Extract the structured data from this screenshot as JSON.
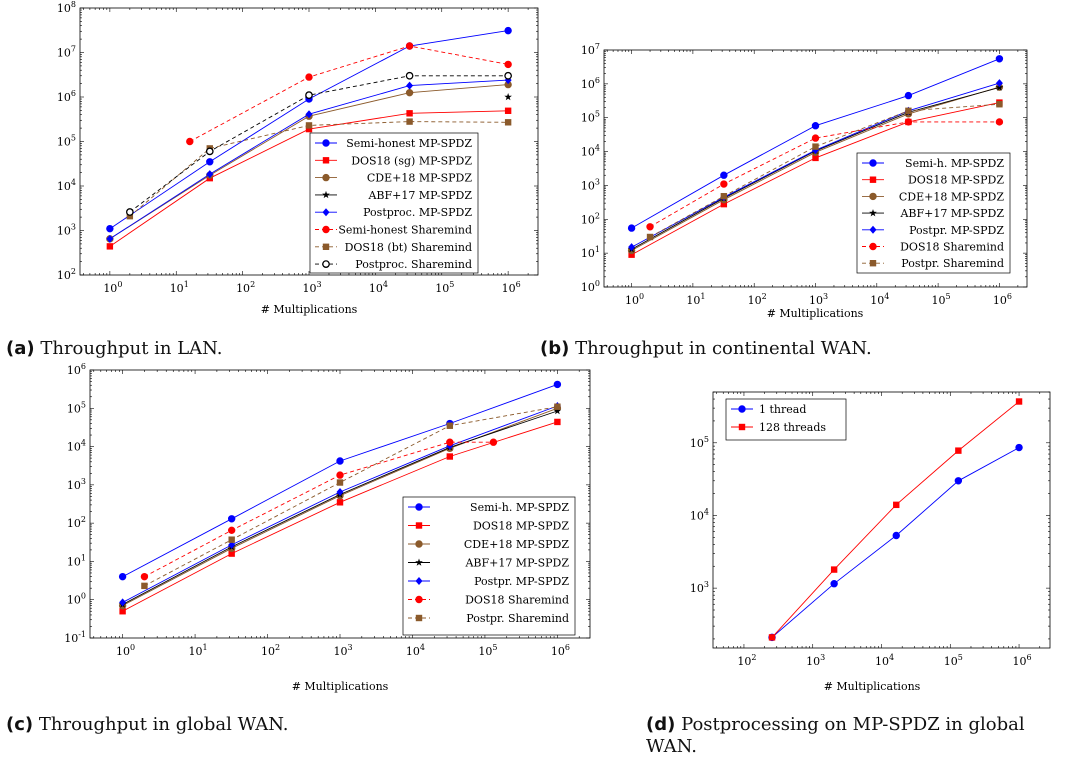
{
  "captions": [
    {
      "tag": "(a)",
      "text": "Throughput in LAN."
    },
    {
      "tag": "(b)",
      "text": "Throughput in continental WAN."
    },
    {
      "tag": "(c)",
      "text": "Throughput in global WAN."
    },
    {
      "tag": "(d)",
      "text": "Postprocessing on MP-SPDZ in global WAN."
    }
  ],
  "chart_data": [
    {
      "type": "line",
      "x_scale": "log",
      "y_scale": "log",
      "xlabel": "# Multiplications",
      "xlim": [
        1,
        1000000
      ],
      "ylim": [
        100,
        100000000
      ],
      "legend_position": "bottom-right",
      "series": [
        {
          "name": "Semi-honest MP-SPDZ",
          "color": "#0000ff",
          "marker": "circle",
          "dashed": false,
          "points": [
            [
              1,
              1100
            ],
            [
              32,
              35000
            ],
            [
              1000,
              900000
            ],
            [
              32768,
              14000000
            ],
            [
              1000000,
              31000000
            ]
          ]
        },
        {
          "name": "DOS18 (sg) MP-SPDZ",
          "color": "#ff0000",
          "marker": "square",
          "dashed": false,
          "points": [
            [
              1,
              440
            ],
            [
              32,
              15000
            ],
            [
              1000,
              190000
            ],
            [
              32768,
              430000
            ],
            [
              1000000,
              490000
            ]
          ]
        },
        {
          "name": "CDE+18 MP-SPDZ",
          "color": "#8b5a2b",
          "marker": "circle",
          "dashed": false,
          "points": [
            [
              1,
              650
            ],
            [
              32,
              17500
            ],
            [
              1000,
              370000
            ],
            [
              32768,
              1250000
            ],
            [
              1000000,
              1900000
            ]
          ]
        },
        {
          "name": "ABF+17 MP-SPDZ",
          "color": "#000000",
          "marker": "star",
          "dashed": false,
          "points": [
            [
              1000000,
              1000000
            ]
          ]
        },
        {
          "name": "Postproc. MP-SPDZ",
          "color": "#0000ff",
          "marker": "diamond",
          "dashed": false,
          "points": [
            [
              1,
              650
            ],
            [
              32,
              18500
            ],
            [
              1000,
              410000
            ],
            [
              32768,
              1800000
            ],
            [
              1000000,
              2400000
            ]
          ]
        },
        {
          "name": "Semi-honest Sharemind",
          "color": "#ff0000",
          "marker": "circle",
          "dashed": true,
          "points": [
            [
              16,
              100000
            ],
            [
              1000,
              2800000
            ],
            [
              32768,
              14000000
            ],
            [
              1000000,
              5400000
            ]
          ]
        },
        {
          "name": "DOS18 (bt) Sharemind",
          "color": "#8b5a2b",
          "marker": "square",
          "dashed": true,
          "points": [
            [
              2,
              2100
            ],
            [
              32,
              70000
            ],
            [
              1000,
              230000
            ],
            [
              32768,
              280000
            ],
            [
              1000000,
              270000
            ]
          ]
        },
        {
          "name": "Postproc. Sharemind",
          "color": "#000000",
          "marker": "circle-open",
          "dashed": true,
          "points": [
            [
              2,
              2600
            ],
            [
              32,
              60000
            ],
            [
              1000,
              1100000
            ],
            [
              32768,
              3000000
            ],
            [
              1000000,
              3000000
            ]
          ]
        }
      ]
    },
    {
      "type": "line",
      "x_scale": "log",
      "y_scale": "log",
      "xlabel": "# Multiplications",
      "xlim": [
        1,
        1000000
      ],
      "ylim": [
        1,
        10000000
      ],
      "legend_position": "bottom-right",
      "series": [
        {
          "name": "Semi-h. MP-SPDZ",
          "color": "#0000ff",
          "marker": "circle",
          "dashed": false,
          "points": [
            [
              1,
              55
            ],
            [
              32,
              2000
            ],
            [
              1000,
              58000
            ],
            [
              32768,
              450000
            ],
            [
              1000000,
              5500000
            ]
          ]
        },
        {
          "name": "DOS18 MP-SPDZ",
          "color": "#ff0000",
          "marker": "square",
          "dashed": false,
          "points": [
            [
              1,
              9
            ],
            [
              32,
              280
            ],
            [
              1000,
              6500
            ],
            [
              32768,
              75000
            ],
            [
              1000000,
              280000
            ]
          ]
        },
        {
          "name": "CDE+18 MP-SPDZ",
          "color": "#8b5a2b",
          "marker": "circle",
          "dashed": false,
          "points": [
            [
              1,
              12
            ],
            [
              32,
              380
            ],
            [
              1000,
              9500
            ],
            [
              32768,
              130000
            ],
            [
              1000000,
              800000
            ]
          ]
        },
        {
          "name": "ABF+17 MP-SPDZ",
          "color": "#000000",
          "marker": "star",
          "dashed": false,
          "points": [
            [
              1,
              13
            ],
            [
              32,
              420
            ],
            [
              1000,
              10500
            ],
            [
              32768,
              145000
            ],
            [
              1000000,
              780000
            ]
          ]
        },
        {
          "name": "Postpr. MP-SPDZ",
          "color": "#0000ff",
          "marker": "diamond",
          "dashed": false,
          "points": [
            [
              1,
              15
            ],
            [
              32,
              450
            ],
            [
              1000,
              11000
            ],
            [
              32768,
              160000
            ],
            [
              1000000,
              1050000
            ]
          ]
        },
        {
          "name": "DOS18 Sharemind",
          "color": "#ff0000",
          "marker": "circle",
          "dashed": true,
          "points": [
            [
              2,
              60
            ],
            [
              32,
              1100
            ],
            [
              1000,
              25000
            ],
            [
              32768,
              75000
            ],
            [
              1000000,
              75000
            ]
          ]
        },
        {
          "name": "Postpr. Sharemind",
          "color": "#8b5a2b",
          "marker": "square",
          "dashed": true,
          "points": [
            [
              2,
              30
            ],
            [
              32,
              480
            ],
            [
              1000,
              14000
            ],
            [
              32768,
              160000
            ],
            [
              1000000,
              250000
            ]
          ]
        }
      ]
    },
    {
      "type": "line",
      "x_scale": "log",
      "y_scale": "log",
      "xlabel": "# Multiplications",
      "xlim": [
        1,
        1000000
      ],
      "ylim": [
        0.1,
        1000000
      ],
      "legend_position": "bottom-right",
      "series": [
        {
          "name": "Semi-h. MP-SPDZ",
          "color": "#0000ff",
          "marker": "circle",
          "dashed": false,
          "points": [
            [
              1,
              4
            ],
            [
              32,
              130
            ],
            [
              1000,
              4200
            ],
            [
              32768,
              40000
            ],
            [
              1000000,
              420000
            ]
          ]
        },
        {
          "name": "DOS18 MP-SPDZ",
          "color": "#ff0000",
          "marker": "square",
          "dashed": false,
          "points": [
            [
              1,
              0.5
            ],
            [
              32,
              16
            ],
            [
              1000,
              350
            ],
            [
              32768,
              5500
            ],
            [
              1000000,
              44000
            ]
          ]
        },
        {
          "name": "CDE+18 MP-SPDZ",
          "color": "#8b5a2b",
          "marker": "circle",
          "dashed": false,
          "points": [
            [
              1,
              0.7
            ],
            [
              32,
              22
            ],
            [
              1000,
              520
            ],
            [
              32768,
              9000
            ],
            [
              1000000,
              100000
            ]
          ]
        },
        {
          "name": "ABF+17 MP-SPDZ",
          "color": "#000000",
          "marker": "star",
          "dashed": false,
          "points": [
            [
              1,
              0.75
            ],
            [
              32,
              24
            ],
            [
              1000,
              560
            ],
            [
              32768,
              9500
            ],
            [
              1000000,
              85000
            ]
          ]
        },
        {
          "name": "Postpr. MP-SPDZ",
          "color": "#0000ff",
          "marker": "diamond",
          "dashed": false,
          "points": [
            [
              1,
              0.85
            ],
            [
              32,
              27
            ],
            [
              1000,
              650
            ],
            [
              32768,
              10500
            ],
            [
              1000000,
              115000
            ]
          ]
        },
        {
          "name": "DOS18 Sharemind",
          "color": "#ff0000",
          "marker": "circle",
          "dashed": true,
          "points": [
            [
              2,
              4
            ],
            [
              32,
              65
            ],
            [
              1000,
              1800
            ],
            [
              32768,
              13000
            ],
            [
              131072,
              13000
            ]
          ]
        },
        {
          "name": "Postpr. Sharemind",
          "color": "#8b5a2b",
          "marker": "square",
          "dashed": true,
          "points": [
            [
              2,
              2.3
            ],
            [
              32,
              37
            ],
            [
              1000,
              1150
            ],
            [
              32768,
              35000
            ],
            [
              1000000,
              110000
            ]
          ]
        }
      ]
    },
    {
      "type": "line",
      "x_scale": "log",
      "y_scale": "log",
      "xlabel": "# Multiplications",
      "xlim": [
        100,
        1000000
      ],
      "ylim": [
        150,
        500000
      ],
      "legend_position": "top-left",
      "series": [
        {
          "name": "1 thread",
          "color": "#0000ff",
          "marker": "circle",
          "dashed": false,
          "points": [
            [
              256,
              210
            ],
            [
              2048,
              1150
            ],
            [
              16384,
              5300
            ],
            [
              131072,
              30000
            ],
            [
              1000000,
              86000
            ]
          ]
        },
        {
          "name": "128 threads",
          "color": "#ff0000",
          "marker": "square",
          "dashed": false,
          "points": [
            [
              256,
              210
            ],
            [
              2048,
              1800
            ],
            [
              16384,
              14000
            ],
            [
              131072,
              78000
            ],
            [
              1000000,
              370000
            ]
          ]
        }
      ]
    }
  ]
}
